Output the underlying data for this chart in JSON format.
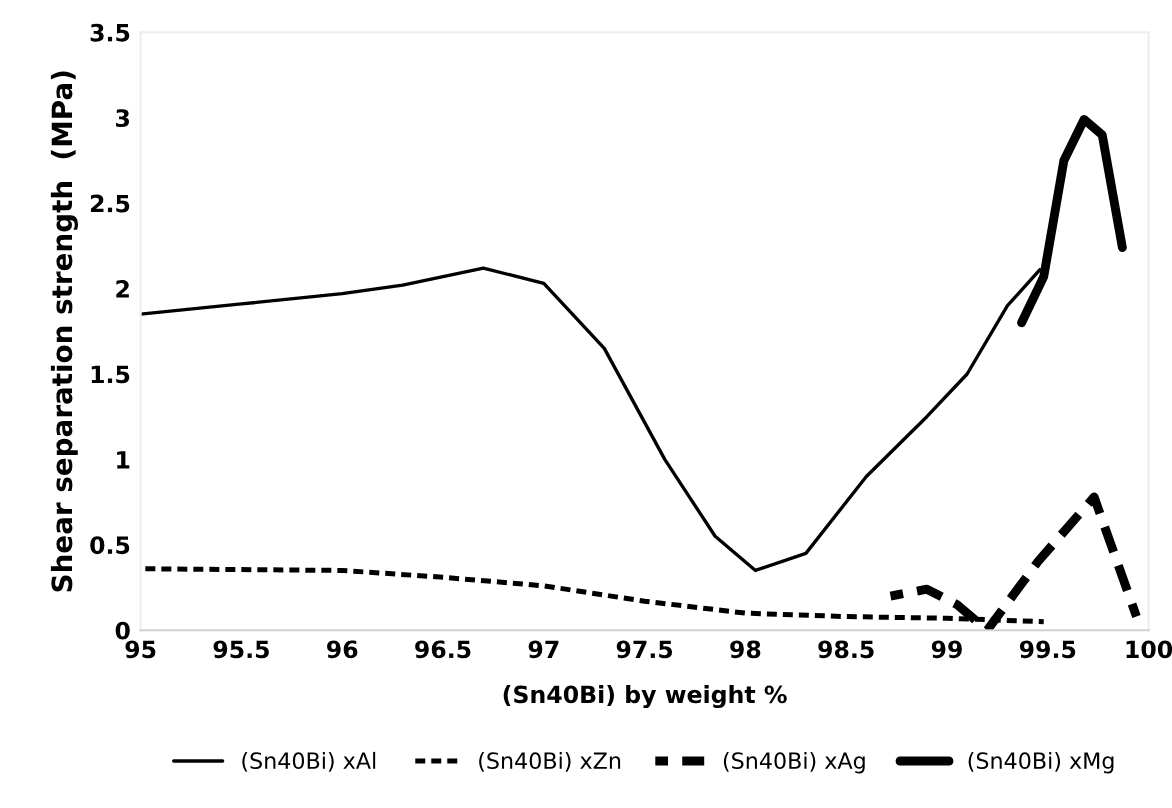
{
  "chart_data": {
    "type": "line",
    "xlabel": "(Sn40Bi) by weight %",
    "ylabel": "Shear separation strength  (MPa)",
    "xlim": [
      95,
      100
    ],
    "xticks": [
      95,
      95.5,
      96,
      96.5,
      97,
      97.5,
      98,
      98.5,
      99,
      99.5,
      100
    ],
    "ylim": [
      0,
      3.5
    ],
    "yticks": [
      0,
      0.5,
      1,
      1.5,
      2,
      2.5,
      3,
      3.5
    ],
    "grid": false,
    "legend": "bottom",
    "marker": "none",
    "series": [
      {
        "name": "(Sn40Bi) xAl",
        "color": "#000000",
        "line_style": "solid",
        "x": [
          95,
          95.5,
          96,
          96.3,
          96.7,
          97,
          97.3,
          97.6,
          97.85,
          98.05,
          98.3,
          98.6,
          98.9,
          99.1,
          99.3,
          99.46
        ],
        "values": [
          1.85,
          1.91,
          1.97,
          2.02,
          2.12,
          2.03,
          1.65,
          1.0,
          0.55,
          0.35,
          0.45,
          0.9,
          1.25,
          1.5,
          1.9,
          2.11
        ]
      },
      {
        "name": "(Sn40Bi) xZn",
        "color": "#000000",
        "line_style": "dashed",
        "x": [
          95,
          96,
          96.5,
          97,
          97.5,
          98,
          98.5,
          99,
          99.48
        ],
        "values": [
          0.36,
          0.35,
          0.31,
          0.26,
          0.17,
          0.1,
          0.08,
          0.07,
          0.05
        ]
      },
      {
        "name": "(Sn40Bi) xAg",
        "color": "#000000",
        "line_style": "dashed",
        "x": [
          98.72,
          98.9,
          99.05,
          99.2,
          99.45,
          99.73,
          99.94
        ],
        "values": [
          0.2,
          0.24,
          0.15,
          0.0,
          0.4,
          0.78,
          0.08
        ]
      },
      {
        "name": "(Sn40Bi) xMg",
        "color": "#000000",
        "line_style": "solid",
        "x": [
          99.37,
          99.48,
          99.58,
          99.68,
          99.77,
          99.87
        ],
        "values": [
          1.8,
          2.07,
          2.75,
          2.99,
          2.9,
          2.24
        ]
      }
    ]
  }
}
